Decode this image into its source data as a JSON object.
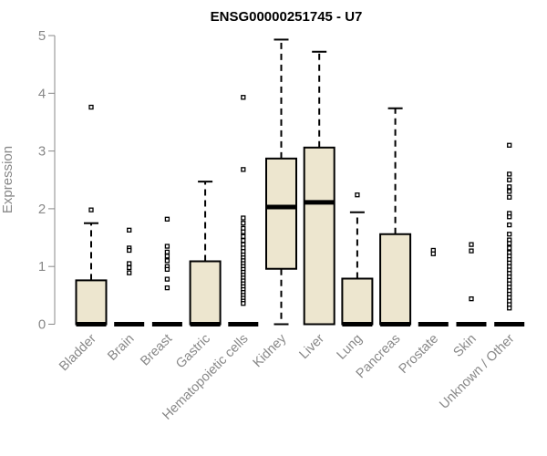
{
  "chart_data": {
    "type": "boxplot",
    "title": "ENSG00000251745 - U7",
    "xlabel": "",
    "ylabel": "Expression",
    "ylim": [
      0,
      5
    ],
    "yticks": [
      "0",
      "1",
      "2",
      "3",
      "4",
      "5"
    ],
    "grid": false,
    "box_color": "#ede6cf",
    "categories": [
      "Bladder",
      "Brain",
      "Breast",
      "Gastric",
      "Hematopoietic cells",
      "Kidney",
      "Liver",
      "Lung",
      "Pancreas",
      "Prostate",
      "Skin",
      "Unknown / Other"
    ],
    "boxes": [
      {
        "label": "Bladder",
        "min": 0,
        "q1": 0,
        "median": 0,
        "q3": 0.76,
        "max": 1.75,
        "outliers": [
          3.76,
          1.98
        ]
      },
      {
        "label": "Brain",
        "min": 0,
        "q1": 0,
        "median": 0,
        "q3": 0,
        "max": 0,
        "outliers": [
          1.63,
          1.32,
          1.28,
          1.05,
          0.98,
          0.89
        ]
      },
      {
        "label": "Breast",
        "min": 0,
        "q1": 0,
        "median": 0,
        "q3": 0,
        "max": 0,
        "outliers": [
          1.82,
          1.35,
          1.25,
          1.18,
          1.1,
          1.0,
          0.95,
          0.78,
          0.63
        ]
      },
      {
        "label": "Gastric",
        "min": 0,
        "q1": 0,
        "median": 0,
        "q3": 1.09,
        "max": 2.47,
        "outliers": []
      },
      {
        "label": "Hematopoietic cells",
        "min": 0,
        "q1": 0,
        "median": 0,
        "q3": 0,
        "max": 0,
        "outliers": [
          3.93,
          2.68,
          1.84,
          1.75,
          1.66,
          1.6,
          1.52,
          1.45,
          1.38,
          1.32,
          1.26,
          1.2,
          1.15,
          1.1,
          1.05,
          1.0,
          0.95,
          0.9,
          0.85,
          0.8,
          0.75,
          0.7,
          0.65,
          0.6,
          0.55,
          0.5,
          0.45,
          0.4,
          0.36
        ]
      },
      {
        "label": "Kidney",
        "min": 0,
        "q1": 0.96,
        "median": 2.03,
        "q3": 2.87,
        "max": 4.93,
        "outliers": []
      },
      {
        "label": "Liver",
        "min": 0,
        "q1": 0,
        "median": 2.11,
        "q3": 3.06,
        "max": 4.72,
        "outliers": []
      },
      {
        "label": "Lung",
        "min": 0,
        "q1": 0,
        "median": 0,
        "q3": 0.79,
        "max": 1.94,
        "outliers": [
          2.24
        ]
      },
      {
        "label": "Pancreas",
        "min": 0,
        "q1": 0,
        "median": 0,
        "q3": 1.56,
        "max": 3.74,
        "outliers": []
      },
      {
        "label": "Prostate",
        "min": 0,
        "q1": 0,
        "median": 0,
        "q3": 0,
        "max": 0,
        "outliers": [
          1.28,
          1.22
        ]
      },
      {
        "label": "Skin",
        "min": 0,
        "q1": 0,
        "median": 0,
        "q3": 0,
        "max": 0,
        "outliers": [
          1.38,
          1.27,
          0.44
        ]
      },
      {
        "label": "Unknown / Other",
        "min": 0,
        "q1": 0,
        "median": 0,
        "q3": 0,
        "max": 0,
        "outliers": [
          3.1,
          2.6,
          2.5,
          2.38,
          2.3,
          2.2,
          1.92,
          1.86,
          1.72,
          1.56,
          1.46,
          1.4,
          1.32,
          1.24,
          1.18,
          1.12,
          1.06,
          1.0,
          0.94,
          0.88,
          0.82,
          0.76,
          0.7,
          0.64,
          0.58,
          0.52,
          0.46,
          0.4,
          0.34,
          0.28
        ]
      }
    ]
  }
}
